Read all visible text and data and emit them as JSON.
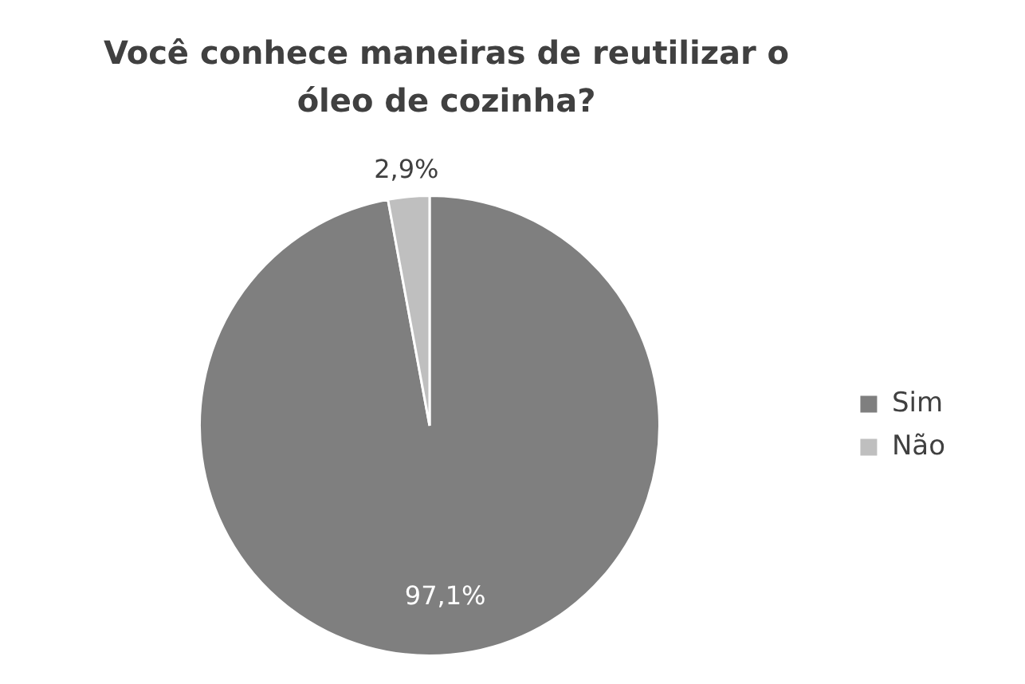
{
  "chart_data": {
    "type": "pie",
    "title": "Você conhece maneiras de reutilizar o óleo de cozinha?",
    "categories": [
      "Sim",
      "Não"
    ],
    "values": [
      97.1,
      2.9
    ],
    "colors": [
      "#7f7f7f",
      "#bfbfbf"
    ],
    "value_labels": [
      "97,1%",
      "2,9%"
    ],
    "legend": "right"
  }
}
